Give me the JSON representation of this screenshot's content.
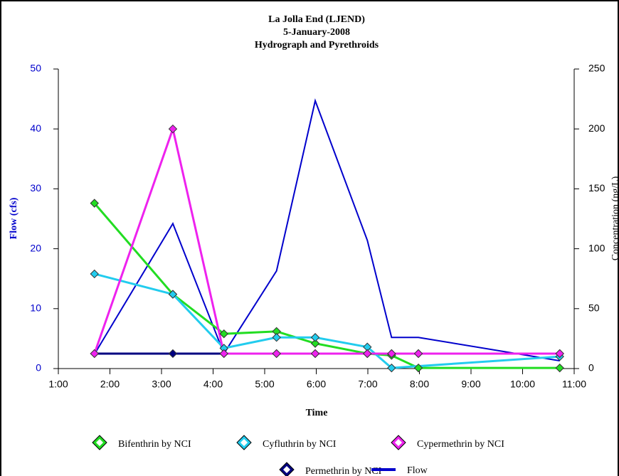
{
  "chart_data": {
    "type": "line",
    "title": [
      "La Jolla End (LJEND)",
      "5-January-2008",
      "Hydrograph and Pyrethroids"
    ],
    "x_label": "Time",
    "y_label": "Flow (cfs)",
    "y2_label": "Concentration (ng/L)",
    "xlim": [
      1,
      11
    ],
    "xticks": [
      {
        "value": 1,
        "label": "1:00"
      },
      {
        "value": 2,
        "label": "2:00"
      },
      {
        "value": 3,
        "label": "3:00"
      },
      {
        "value": 4,
        "label": "4:00"
      },
      {
        "value": 5,
        "label": "5:00"
      },
      {
        "value": 6,
        "label": "6:00"
      },
      {
        "value": 7,
        "label": "7:00"
      },
      {
        "value": 8,
        "label": "8:00"
      },
      {
        "value": 9,
        "label": "9:00"
      },
      {
        "value": 10,
        "label": "10:00"
      },
      {
        "value": 11,
        "label": "11:00"
      }
    ],
    "ylim": [
      0,
      50
    ],
    "yticks": [
      0,
      10,
      20,
      30,
      40,
      50
    ],
    "y2lim": [
      0,
      250
    ],
    "y2ticks": [
      0,
      50,
      100,
      150,
      200,
      250
    ],
    "series": [
      {
        "name": "Flow",
        "color": "#0000cc",
        "axis": "y",
        "marker": false,
        "x": [
          1.7,
          3.22,
          4.21,
          5.23,
          5.98,
          6.99,
          7.46,
          7.98,
          10.72
        ],
        "values": [
          2.4,
          24.2,
          2.5,
          16.3,
          44.7,
          21.4,
          5.2,
          5.2,
          1.3
        ]
      },
      {
        "name": "Permethrin by NCI",
        "color": "#000080",
        "axis": "y2",
        "marker": true,
        "x": [
          1.7,
          3.22,
          4.21,
          5.23,
          5.98,
          6.99,
          7.46,
          7.98,
          10.72
        ],
        "values": [
          12.5,
          12.5,
          12.5,
          12.5,
          12.5,
          12.5,
          12.5,
          12.5,
          12.5
        ]
      },
      {
        "name": "Bifenthrin by NCI",
        "color": "#22dd22",
        "axis": "y2",
        "marker": true,
        "x": [
          1.7,
          3.22,
          4.21,
          5.23,
          5.98,
          6.99,
          7.46,
          7.98,
          10.72
        ],
        "values": [
          138,
          62,
          29,
          31,
          21,
          12.5,
          11,
          0.5,
          0.5
        ]
      },
      {
        "name": "Cyfluthrin by NCI",
        "color": "#22ccee",
        "axis": "y2",
        "marker": true,
        "x": [
          1.7,
          3.22,
          4.21,
          5.23,
          5.98,
          6.99,
          7.46,
          10.72
        ],
        "values": [
          79,
          62,
          17,
          26,
          26,
          18,
          0.5,
          10
        ]
      },
      {
        "name": "Cypermethrin by NCI",
        "color": "#ee22ee",
        "axis": "y2",
        "marker": true,
        "x": [
          1.7,
          3.22,
          4.21,
          5.23,
          5.98,
          6.99,
          7.46,
          7.98,
          10.72
        ],
        "values": [
          12.5,
          200,
          12.5,
          12.5,
          12.5,
          12.5,
          12.5,
          12.5,
          12.5
        ]
      }
    ]
  }
}
